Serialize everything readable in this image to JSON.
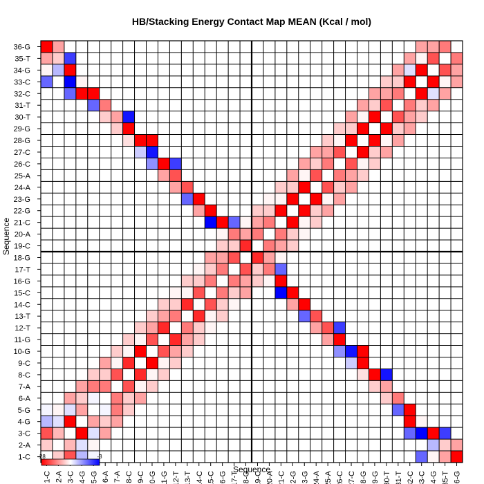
{
  "chart_data": {
    "type": "heatmap",
    "title": "HB/Stacking Energy Contact Map MEAN (Kcal / mol)",
    "xlabel": "Sequence",
    "ylabel": "Sequence",
    "labels": [
      "1-C",
      "2-A",
      "3-C",
      "4-G",
      "5-G",
      "6-A",
      "7-A",
      "8-C",
      "9-C",
      "10-G",
      "11-G",
      "12-T",
      "13-T",
      "14-C",
      "15-C",
      "16-G",
      "17-T",
      "18-G",
      "19-C",
      "20-A",
      "21-C",
      "22-G",
      "23-G",
      "24-A",
      "25-A",
      "26-C",
      "27-C",
      "28-G",
      "29-G",
      "30-T",
      "31-T",
      "32-C",
      "33-C",
      "34-G",
      "35-T",
      "36-G"
    ],
    "y_order": "bottom-to-top",
    "divider_after_index": 18,
    "color_scale": {
      "min": -28,
      "max": -3,
      "low_color": "#ff0000",
      "mid_color": "#ffffff",
      "high_color": "#0000ff",
      "tick_labels": [
        "-28",
        "-3"
      ]
    },
    "cells": [
      [
        1,
        2,
        -18
      ],
      [
        1,
        3,
        -24
      ],
      [
        1,
        4,
        -12
      ],
      [
        1,
        5,
        -15
      ],
      [
        1,
        33,
        -8
      ],
      [
        1,
        34,
        -16
      ],
      [
        1,
        35,
        -20
      ],
      [
        1,
        36,
        -28
      ],
      [
        2,
        3,
        -19
      ],
      [
        2,
        4,
        -14
      ],
      [
        2,
        5,
        -16
      ],
      [
        2,
        34,
        -12
      ],
      [
        2,
        35,
        -18
      ],
      [
        2,
        36,
        -20
      ],
      [
        3,
        4,
        -28
      ],
      [
        3,
        5,
        -14
      ],
      [
        3,
        6,
        -20
      ],
      [
        3,
        32,
        -8
      ],
      [
        3,
        33,
        -3
      ],
      [
        3,
        34,
        -28
      ],
      [
        3,
        35,
        -6
      ],
      [
        4,
        5,
        -20
      ],
      [
        4,
        6,
        -18
      ],
      [
        4,
        7,
        -20
      ],
      [
        4,
        32,
        -28
      ],
      [
        4,
        33,
        -16
      ],
      [
        5,
        6,
        -15
      ],
      [
        5,
        7,
        -22
      ],
      [
        5,
        8,
        -18
      ],
      [
        5,
        31,
        -8
      ],
      [
        5,
        32,
        -28
      ],
      [
        6,
        7,
        -22
      ],
      [
        6,
        8,
        -18
      ],
      [
        6,
        9,
        -20
      ],
      [
        6,
        30,
        -18
      ],
      [
        6,
        31,
        -22
      ],
      [
        7,
        8,
        -24
      ],
      [
        7,
        9,
        -16
      ],
      [
        7,
        10,
        -18
      ],
      [
        7,
        29,
        -18
      ],
      [
        7,
        30,
        -20
      ],
      [
        8,
        9,
        -26
      ],
      [
        8,
        10,
        -16
      ],
      [
        8,
        11,
        -18
      ],
      [
        8,
        28,
        -17
      ],
      [
        8,
        29,
        -28
      ],
      [
        8,
        30,
        -4
      ],
      [
        9,
        10,
        -28
      ],
      [
        9,
        11,
        -16
      ],
      [
        9,
        12,
        -18
      ],
      [
        9,
        27,
        -13
      ],
      [
        9,
        28,
        -28
      ],
      [
        10,
        11,
        -24
      ],
      [
        10,
        12,
        -20
      ],
      [
        10,
        13,
        -18
      ],
      [
        10,
        26,
        -10
      ],
      [
        10,
        27,
        -4
      ],
      [
        10,
        28,
        -28
      ],
      [
        11,
        12,
        -26
      ],
      [
        11,
        13,
        -20
      ],
      [
        11,
        14,
        -18
      ],
      [
        11,
        25,
        -20
      ],
      [
        11,
        26,
        -28
      ],
      [
        12,
        13,
        -22
      ],
      [
        12,
        14,
        -18
      ],
      [
        12,
        15,
        -16
      ],
      [
        12,
        24,
        -20
      ],
      [
        12,
        25,
        -24
      ],
      [
        12,
        26,
        -6
      ],
      [
        13,
        14,
        -26
      ],
      [
        13,
        15,
        -16
      ],
      [
        13,
        16,
        -18
      ],
      [
        13,
        23,
        -8
      ],
      [
        13,
        24,
        -24
      ],
      [
        14,
        15,
        -24
      ],
      [
        14,
        16,
        -18
      ],
      [
        14,
        17,
        -16
      ],
      [
        14,
        22,
        -20
      ],
      [
        14,
        23,
        -28
      ],
      [
        15,
        16,
        -22
      ],
      [
        15,
        17,
        -18
      ],
      [
        15,
        18,
        -20
      ],
      [
        15,
        21,
        -3
      ],
      [
        15,
        22,
        -28
      ],
      [
        16,
        17,
        -22
      ],
      [
        16,
        18,
        -20
      ],
      [
        16,
        19,
        -18
      ],
      [
        16,
        20,
        -16
      ],
      [
        16,
        21,
        -28
      ],
      [
        17,
        18,
        -24
      ],
      [
        17,
        19,
        -18
      ],
      [
        17,
        20,
        -22
      ],
      [
        17,
        21,
        -8
      ],
      [
        18,
        19,
        -26
      ],
      [
        18,
        20,
        -20
      ],
      [
        18,
        21,
        -16
      ],
      [
        19,
        20,
        -22
      ],
      [
        19,
        21,
        -20
      ],
      [
        19,
        22,
        -18
      ],
      [
        20,
        21,
        -22
      ],
      [
        20,
        22,
        -18
      ],
      [
        20,
        23,
        -16
      ],
      [
        21,
        22,
        -28
      ],
      [
        21,
        23,
        -16
      ],
      [
        21,
        24,
        -18
      ],
      [
        22,
        23,
        -28
      ],
      [
        22,
        24,
        -18
      ],
      [
        22,
        25,
        -20
      ],
      [
        23,
        24,
        -28
      ],
      [
        23,
        25,
        -16
      ],
      [
        23,
        26,
        -20
      ],
      [
        24,
        25,
        -24
      ],
      [
        24,
        26,
        -18
      ],
      [
        24,
        27,
        -20
      ],
      [
        25,
        26,
        -22
      ],
      [
        25,
        27,
        -20
      ],
      [
        25,
        28,
        -18
      ],
      [
        26,
        27,
        -24
      ],
      [
        26,
        28,
        -16
      ],
      [
        26,
        29,
        -18
      ],
      [
        27,
        28,
        -28
      ],
      [
        27,
        29,
        -18
      ],
      [
        27,
        30,
        -20
      ],
      [
        28,
        29,
        -28
      ],
      [
        28,
        30,
        -16
      ],
      [
        28,
        31,
        -20
      ],
      [
        29,
        30,
        -28
      ],
      [
        29,
        31,
        -18
      ],
      [
        29,
        32,
        -20
      ],
      [
        30,
        31,
        -24
      ],
      [
        30,
        32,
        -20
      ],
      [
        30,
        33,
        -18
      ],
      [
        31,
        32,
        -22
      ],
      [
        31,
        33,
        -18
      ],
      [
        31,
        34,
        -20
      ],
      [
        32,
        33,
        -28
      ],
      [
        32,
        34,
        -14
      ],
      [
        32,
        35,
        -20
      ],
      [
        33,
        34,
        -28
      ],
      [
        33,
        35,
        -16
      ],
      [
        33,
        36,
        -20
      ],
      [
        34,
        35,
        -24
      ],
      [
        34,
        36,
        -20
      ],
      [
        35,
        36,
        -22
      ]
    ]
  }
}
